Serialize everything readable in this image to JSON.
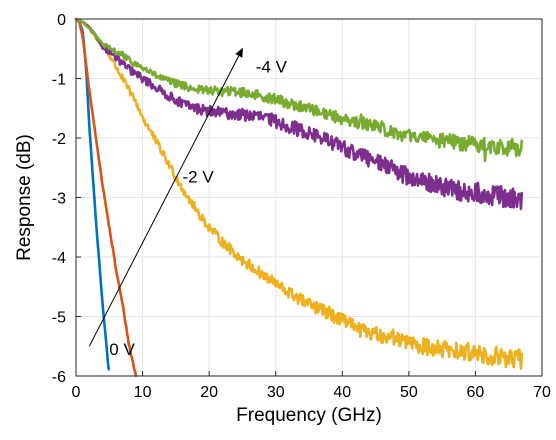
{
  "chart_data": {
    "type": "line",
    "title": "",
    "xlabel": "Frequency (GHz)",
    "ylabel": "Response (dB)",
    "xlim": [
      0,
      70
    ],
    "ylim": [
      -6,
      0
    ],
    "xticks": [
      "0",
      "10",
      "20",
      "30",
      "40",
      "50",
      "60",
      "70"
    ],
    "yticks": [
      "0",
      "-1",
      "-2",
      "-3",
      "-4",
      "-5",
      "-6"
    ],
    "grid": true,
    "series": [
      {
        "label": "0 V",
        "color": "#0072BD",
        "noise": 0.02,
        "x": [
          0.0,
          0.5,
          1,
          1.5,
          2,
          3,
          4,
          5
        ],
        "y": [
          0.0,
          -0.05,
          -0.2,
          -0.8,
          -1.8,
          -3.4,
          -4.8,
          -6.0
        ]
      },
      {
        "label": "",
        "color": "#D95319",
        "noise": 0.02,
        "x": [
          0.0,
          0.5,
          1,
          2,
          3,
          4,
          5,
          6,
          7,
          8,
          9
        ],
        "y": [
          0.0,
          -0.05,
          -0.3,
          -1.2,
          -2.0,
          -2.8,
          -3.5,
          -4.2,
          -4.8,
          -5.5,
          -6.0
        ]
      },
      {
        "label": "-2 V",
        "color": "#EDB120",
        "noise": 0.045,
        "x": [
          0,
          1,
          2,
          3,
          4,
          5,
          6,
          7,
          8,
          9,
          10,
          12,
          14,
          16,
          18,
          20,
          22,
          25,
          28,
          30,
          32,
          35,
          38,
          40,
          42,
          45,
          48,
          50,
          52,
          55,
          58,
          60,
          62,
          65,
          67
        ],
        "y": [
          0.0,
          -0.05,
          -0.15,
          -0.3,
          -0.45,
          -0.6,
          -0.8,
          -1.0,
          -1.2,
          -1.4,
          -1.65,
          -2.05,
          -2.45,
          -2.85,
          -3.2,
          -3.5,
          -3.75,
          -4.05,
          -4.3,
          -4.45,
          -4.6,
          -4.8,
          -4.95,
          -5.05,
          -5.2,
          -5.3,
          -5.35,
          -5.45,
          -5.5,
          -5.55,
          -5.6,
          -5.6,
          -5.65,
          -5.7,
          -5.72
        ]
      },
      {
        "label": "",
        "color": "#7E2F8E",
        "noise": 0.05,
        "x": [
          0,
          1,
          2,
          3,
          4,
          5,
          6,
          7,
          8,
          10,
          12,
          14,
          16,
          18,
          20,
          22,
          24,
          26,
          28,
          30,
          32,
          35,
          38,
          40,
          42,
          45,
          48,
          50,
          52,
          55,
          58,
          60,
          62,
          65,
          67
        ],
        "y": [
          0.0,
          -0.05,
          -0.15,
          -0.3,
          -0.45,
          -0.55,
          -0.65,
          -0.75,
          -0.85,
          -1.0,
          -1.15,
          -1.3,
          -1.42,
          -1.5,
          -1.55,
          -1.58,
          -1.6,
          -1.62,
          -1.65,
          -1.72,
          -1.8,
          -1.92,
          -2.05,
          -2.15,
          -2.25,
          -2.4,
          -2.55,
          -2.65,
          -2.72,
          -2.82,
          -2.9,
          -2.92,
          -2.95,
          -3.0,
          -3.05
        ]
      },
      {
        "label": "-4 V",
        "color": "#77AC30",
        "noise": 0.04,
        "x": [
          0,
          1,
          2,
          3,
          4,
          5,
          6,
          7,
          8,
          10,
          12,
          14,
          16,
          18,
          20,
          22,
          24,
          26,
          28,
          30,
          32,
          35,
          38,
          40,
          42,
          45,
          48,
          50,
          52,
          55,
          58,
          60,
          62,
          65,
          67
        ],
        "y": [
          0.0,
          -0.05,
          -0.15,
          -0.3,
          -0.42,
          -0.5,
          -0.55,
          -0.6,
          -0.7,
          -0.82,
          -0.95,
          -1.05,
          -1.12,
          -1.18,
          -1.2,
          -1.22,
          -1.22,
          -1.25,
          -1.3,
          -1.35,
          -1.42,
          -1.5,
          -1.6,
          -1.68,
          -1.72,
          -1.8,
          -1.9,
          -1.98,
          -2.0,
          -2.05,
          -2.08,
          -2.1,
          -2.12,
          -2.15,
          -2.18
        ]
      }
    ],
    "annotations": [
      {
        "text": "-4 V",
        "x": 27,
        "y": -0.9
      },
      {
        "text": "-2 V",
        "x": 16,
        "y": -2.75
      },
      {
        "text": "0 V",
        "x": 5,
        "y": -5.65
      }
    ],
    "arrow": {
      "from": [
        2,
        -5.5
      ],
      "to": [
        25,
        -0.5
      ]
    }
  }
}
